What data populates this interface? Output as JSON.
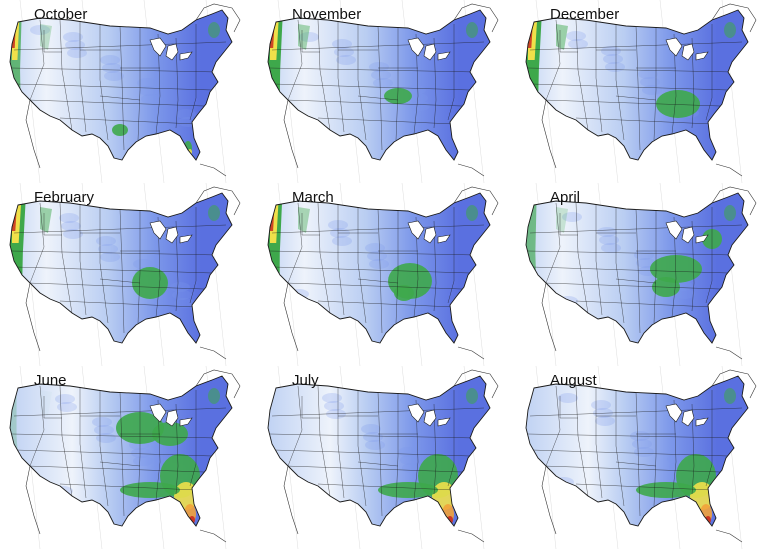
{
  "panels": [
    {
      "month": "October",
      "wet_west": 0.55,
      "wet_south": [
        "gulf_tx",
        "florida"
      ],
      "heat": 0
    },
    {
      "month": "November",
      "wet_west": 0.85,
      "wet_south": [
        "ozark"
      ],
      "heat": 0
    },
    {
      "month": "December",
      "wet_west": 0.95,
      "wet_south": [
        "tennessee"
      ],
      "heat": 0
    },
    {
      "month": "February",
      "wet_west": 0.95,
      "wet_south": [
        "arklatex"
      ],
      "heat": 0
    },
    {
      "month": "March",
      "wet_west": 0.8,
      "wet_south": [
        "arklatex_big"
      ],
      "heat": 0
    },
    {
      "month": "April",
      "wet_west": 0.45,
      "wet_south": [
        "ohio_valley"
      ],
      "heat": 0
    },
    {
      "month": "June",
      "wet_west": 0.05,
      "wet_south": [
        "midwest",
        "southeast"
      ],
      "heat": 0.8
    },
    {
      "month": "July",
      "wet_west": 0.0,
      "wet_south": [
        "southeast"
      ],
      "heat": 0.9
    },
    {
      "month": "August",
      "wet_west": 0.0,
      "wet_south": [
        "southeast"
      ],
      "heat": 0.7
    }
  ],
  "colors": {
    "dry": "#eef3fb",
    "light": "#b9cdf2",
    "mid": "#7d98ea",
    "blue": "#5a70e0",
    "green": "#3ea84b",
    "yellow": "#f0e04a",
    "orange": "#f2a23a",
    "red": "#c92a1f",
    "border": "#1a1a1a"
  }
}
